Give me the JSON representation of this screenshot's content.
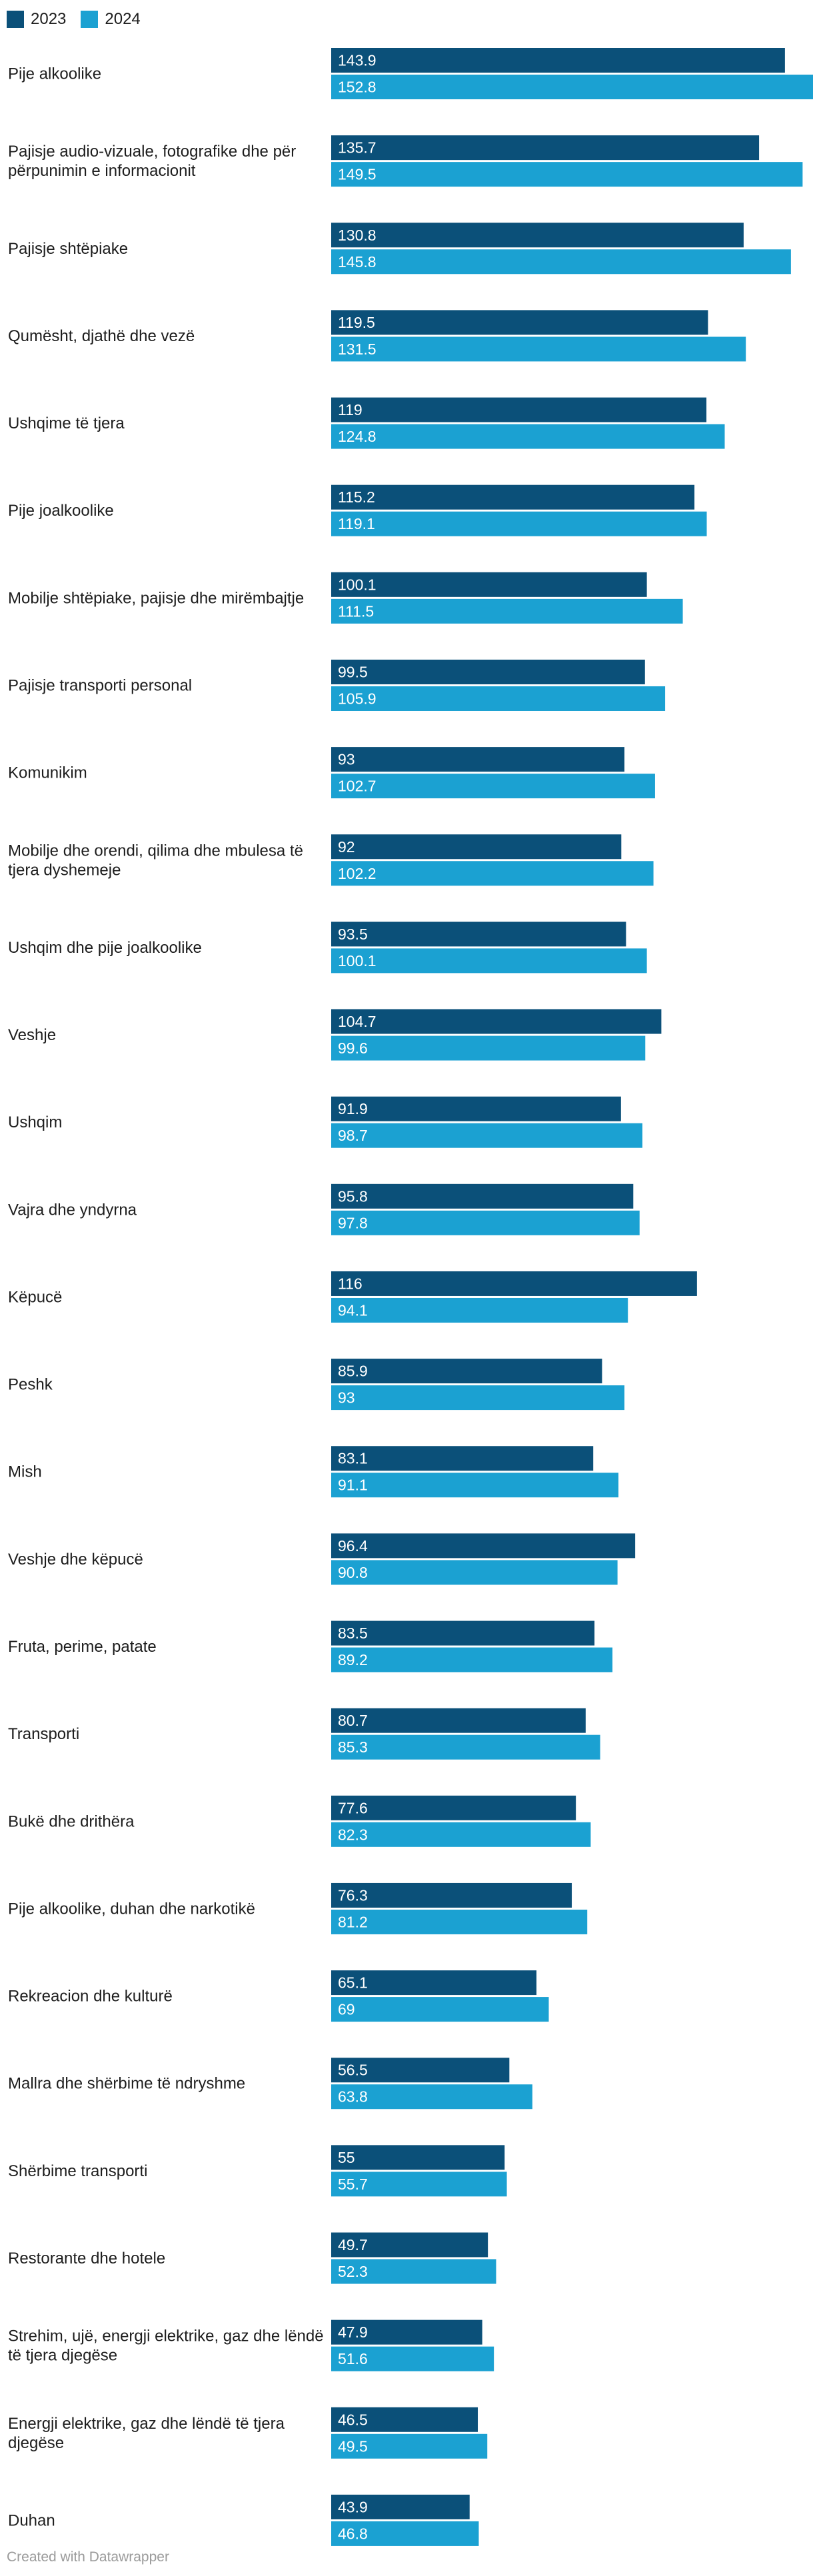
{
  "chart_data": {
    "type": "bar",
    "orientation": "horizontal",
    "xlim": [
      0,
      152.8
    ],
    "legend_position": "top-left",
    "series": [
      {
        "name": "2023",
        "color": "#0b5079",
        "values": [
          143.9,
          135.7,
          130.8,
          119.5,
          119,
          115.2,
          100.1,
          99.5,
          93,
          92,
          93.5,
          104.7,
          91.9,
          95.8,
          116,
          85.9,
          83.1,
          96.4,
          83.5,
          80.7,
          77.6,
          76.3,
          65.1,
          56.5,
          55,
          49.7,
          47.9,
          46.5,
          43.9
        ],
        "labels": [
          "143.9",
          "135.7",
          "130.8",
          "119.5",
          "119",
          "115.2",
          "100.1",
          "99.5",
          "93",
          "92",
          "93.5",
          "104.7",
          "91.9",
          "95.8",
          "116",
          "85.9",
          "83.1",
          "96.4",
          "83.5",
          "80.7",
          "77.6",
          "76.3",
          "65.1",
          "56.5",
          "55",
          "49.7",
          "47.9",
          "46.5",
          "43.9"
        ]
      },
      {
        "name": "2024",
        "color": "#1ba1d2",
        "values": [
          152.8,
          149.5,
          145.8,
          131.5,
          124.8,
          119.1,
          111.5,
          105.9,
          102.7,
          102.2,
          100.1,
          99.6,
          98.7,
          97.8,
          94.1,
          93,
          91.1,
          90.8,
          89.2,
          85.3,
          82.3,
          81.2,
          69,
          63.8,
          55.7,
          52.3,
          51.6,
          49.5,
          46.8
        ],
        "labels": [
          "152.8",
          "149.5",
          "145.8",
          "131.5",
          "124.8",
          "119.1",
          "111.5",
          "105.9",
          "102.7",
          "102.2",
          "100.1",
          "99.6",
          "98.7",
          "97.8",
          "94.1",
          "93",
          "91.1",
          "90.8",
          "89.2",
          "85.3",
          "82.3",
          "81.2",
          "69",
          "63.8",
          "55.7",
          "52.3",
          "51.6",
          "49.5",
          "46.8"
        ]
      }
    ],
    "categories": [
      [
        "Pije alkoolike"
      ],
      [
        "Pajisje audio-vizuale, fotografike dhe për",
        "përpunimin e informacionit"
      ],
      [
        "Pajisje shtëpiake"
      ],
      [
        "Qumësht, djathë dhe vezë"
      ],
      [
        "Ushqime të tjera"
      ],
      [
        "Pije joalkoolike"
      ],
      [
        "Mobilje shtëpiake, pajisje dhe mirëmbajtje"
      ],
      [
        "Pajisje transporti personal"
      ],
      [
        "Komunikim"
      ],
      [
        "Mobilje dhe orendi, qilima dhe mbulesa të",
        "tjera dyshemeje"
      ],
      [
        "Ushqim dhe pije joalkoolike"
      ],
      [
        "Veshje"
      ],
      [
        "Ushqim"
      ],
      [
        "Vajra dhe yndyrna"
      ],
      [
        "Këpucë"
      ],
      [
        "Peshk"
      ],
      [
        "Mish"
      ],
      [
        "Veshje dhe këpucë"
      ],
      [
        "Fruta, perime, patate"
      ],
      [
        "Transporti"
      ],
      [
        "Bukë dhe drithëra"
      ],
      [
        "Pije alkoolike, duhan dhe narkotikë"
      ],
      [
        "Rekreacion dhe kulturë"
      ],
      [
        "Mallra dhe shërbime të ndryshme"
      ],
      [
        "Shërbime transporti"
      ],
      [
        "Restorante dhe hotele"
      ],
      [
        "Strehim, ujë, energji elektrike, gaz dhe lëndë",
        "të tjera djegëse"
      ],
      [
        "Energji elektrike, gaz dhe lëndë të tjera",
        "djegëse"
      ],
      [
        "Duhan"
      ]
    ]
  },
  "credit": "Created with Datawrapper"
}
